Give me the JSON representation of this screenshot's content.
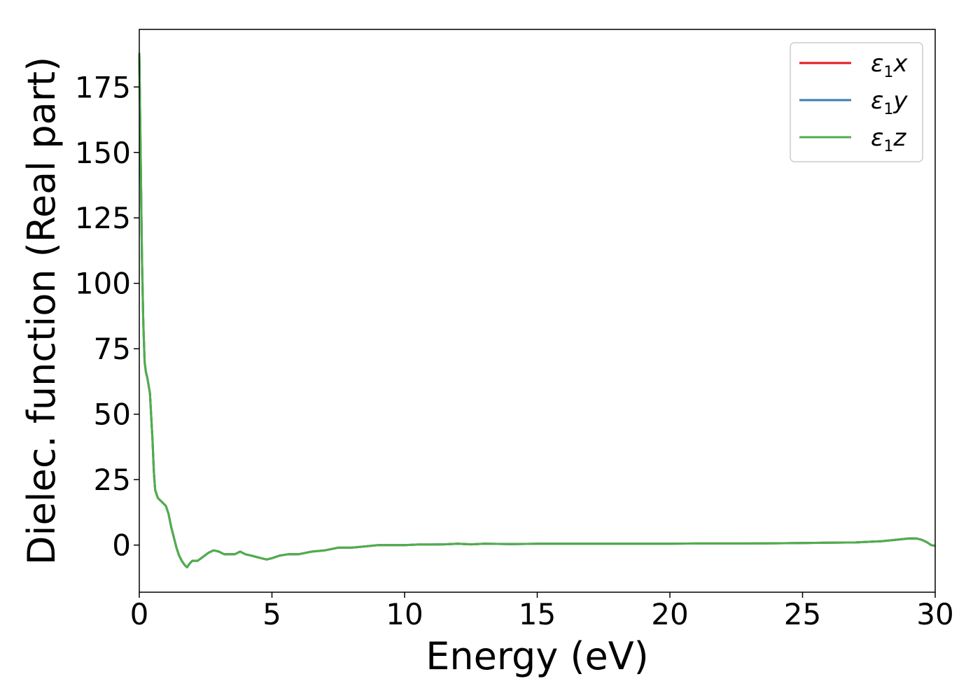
{
  "chart_data": {
    "type": "line",
    "xlabel": "Energy (eV)",
    "ylabel": "Dielec. function (Real part)",
    "xlim": [
      0,
      30
    ],
    "ylim": [
      -18,
      197
    ],
    "xticks": [
      "0",
      "5",
      "10",
      "15",
      "20",
      "25",
      "30"
    ],
    "yticks": [
      "0",
      "25",
      "50",
      "75",
      "100",
      "125",
      "150",
      "175"
    ],
    "grid": false,
    "legend_position": "top-right",
    "x": [
      0.0,
      0.05,
      0.1,
      0.15,
      0.2,
      0.25,
      0.3,
      0.4,
      0.5,
      0.55,
      0.6,
      0.7,
      0.8,
      0.9,
      1.0,
      1.1,
      1.2,
      1.3,
      1.4,
      1.5,
      1.6,
      1.7,
      1.8,
      1.9,
      2.0,
      2.1,
      2.2,
      2.4,
      2.6,
      2.8,
      3.0,
      3.2,
      3.4,
      3.6,
      3.8,
      4.0,
      4.2,
      4.4,
      4.6,
      4.8,
      5.0,
      5.3,
      5.6,
      6.0,
      6.5,
      7.0,
      7.5,
      8.0,
      8.5,
      9.0,
      9.5,
      10.0,
      10.5,
      11.0,
      11.5,
      12.0,
      12.5,
      13.0,
      14.0,
      15.0,
      16.0,
      17.0,
      18.0,
      19.0,
      20.0,
      21.0,
      22.0,
      23.0,
      24.0,
      25.0,
      26.0,
      27.0,
      28.0,
      28.5,
      29.0,
      29.3,
      29.5,
      29.7,
      29.85,
      30.0
    ],
    "series": [
      {
        "name": "x",
        "color": "#e41a1c",
        "values": [
          188,
          150,
          110,
          85,
          70,
          66,
          64,
          58,
          40,
          28,
          21,
          18,
          17,
          16,
          15,
          12,
          7,
          3,
          -1,
          -4,
          -6,
          -7.5,
          -8.5,
          -7,
          -6,
          -6,
          -6,
          -4.5,
          -3,
          -2,
          -2.5,
          -3.5,
          -3.5,
          -3.5,
          -2.5,
          -3.5,
          -4,
          -4.5,
          -5,
          -5.5,
          -5,
          -4,
          -3.5,
          -3.5,
          -2.5,
          -2,
          -1,
          -1,
          -0.5,
          0,
          0,
          0,
          0.2,
          0.2,
          0.3,
          0.5,
          0.3,
          0.5,
          0.4,
          0.5,
          0.5,
          0.5,
          0.5,
          0.5,
          0.5,
          0.6,
          0.6,
          0.6,
          0.7,
          0.8,
          0.9,
          1.0,
          1.5,
          2.0,
          2.5,
          2.5,
          2.0,
          1.0,
          0.0,
          -0.3
        ]
      },
      {
        "name": "y",
        "color": "#377eb8",
        "values": [
          188,
          150,
          110,
          85,
          70,
          66,
          64,
          58,
          40,
          28,
          21,
          18,
          17,
          16,
          15,
          12,
          7,
          3,
          -1,
          -4,
          -6,
          -7.5,
          -8.5,
          -7,
          -6,
          -6,
          -6,
          -4.5,
          -3,
          -2,
          -2.5,
          -3.5,
          -3.5,
          -3.5,
          -2.5,
          -3.5,
          -4,
          -4.5,
          -5,
          -5.5,
          -5,
          -4,
          -3.5,
          -3.5,
          -2.5,
          -2,
          -1,
          -1,
          -0.5,
          0,
          0,
          0,
          0.2,
          0.2,
          0.3,
          0.5,
          0.3,
          0.5,
          0.4,
          0.5,
          0.5,
          0.5,
          0.5,
          0.5,
          0.5,
          0.6,
          0.6,
          0.6,
          0.7,
          0.8,
          0.9,
          1.0,
          1.5,
          2.0,
          2.5,
          2.5,
          2.0,
          1.0,
          0.0,
          -0.3
        ]
      },
      {
        "name": "z",
        "color": "#4daf4a",
        "values": [
          188,
          150,
          110,
          85,
          70,
          66,
          64,
          58,
          40,
          28,
          21,
          18,
          17,
          16,
          15,
          12,
          7,
          3,
          -1,
          -4,
          -6,
          -7.5,
          -8.5,
          -7,
          -6,
          -6,
          -6,
          -4.5,
          -3,
          -2,
          -2.5,
          -3.5,
          -3.5,
          -3.5,
          -2.5,
          -3.5,
          -4,
          -4.5,
          -5,
          -5.5,
          -5,
          -4,
          -3.5,
          -3.5,
          -2.5,
          -2,
          -1,
          -1,
          -0.5,
          0,
          0,
          0,
          0.2,
          0.2,
          0.3,
          0.5,
          0.3,
          0.5,
          0.4,
          0.5,
          0.5,
          0.5,
          0.5,
          0.5,
          0.5,
          0.6,
          0.6,
          0.6,
          0.7,
          0.8,
          0.9,
          1.0,
          1.5,
          2.0,
          2.5,
          2.5,
          2.0,
          1.0,
          0.0,
          -0.3
        ]
      }
    ],
    "legend": [
      {
        "symbol": "ε",
        "sub": "1",
        "axis": "x"
      },
      {
        "symbol": "ε",
        "sub": "1",
        "axis": "y"
      },
      {
        "symbol": "ε",
        "sub": "1",
        "axis": "z"
      }
    ]
  }
}
